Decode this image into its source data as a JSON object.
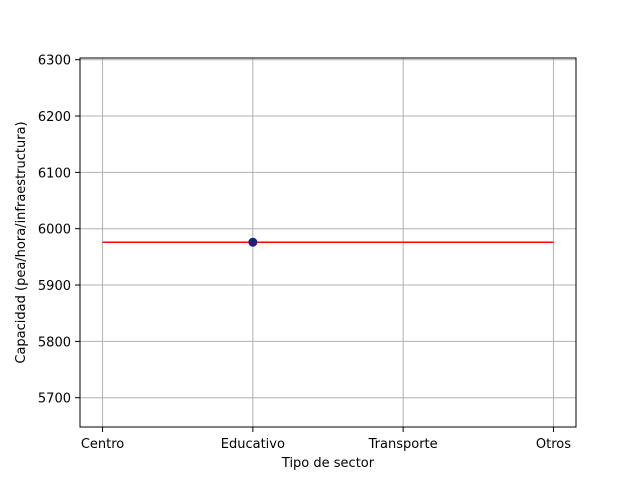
{
  "chart_data": {
    "type": "scatter",
    "title": "",
    "xlabel": "Tipo de sector",
    "ylabel": "Capacidad (pea/hora/infraestructura)",
    "categories": [
      "Centro",
      "Educativo",
      "Transporte",
      "Otros"
    ],
    "xlim": [
      -0.15,
      3.15
    ],
    "ylim": [
      5648,
      6303
    ],
    "yticks": [
      5700,
      5800,
      5900,
      6000,
      6100,
      6200,
      6300
    ],
    "grid": true,
    "points": [
      {
        "category": "Educativo",
        "value": 5976,
        "color": "#1f1f7a"
      }
    ],
    "reference_line": {
      "value": 5976,
      "from": "Centro",
      "to": "Otros",
      "color": "#ff0000"
    }
  }
}
